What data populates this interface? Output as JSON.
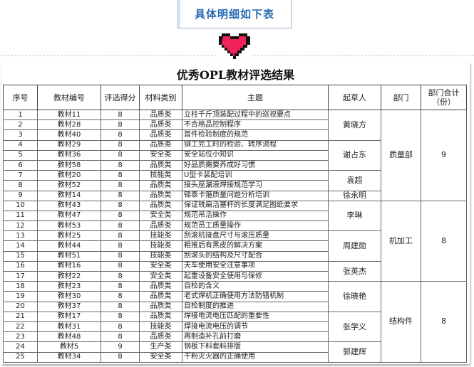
{
  "banner": {
    "label": "具体明细如下表"
  },
  "heart_icon": {
    "color": "#f0245a"
  },
  "sheet": {
    "title": "优秀OPL教材评选结果",
    "headers": [
      "序号",
      "教材编号",
      "评选得分",
      "材料类别",
      "主题",
      "起草人",
      "部门",
      "部门合计（份）"
    ],
    "rows": [
      {
        "no": "1",
        "id": "教材11",
        "score": "8",
        "type": "品质类",
        "topic": "立柱千斤顶装配过程中的巡视要点"
      },
      {
        "no": "2",
        "id": "教材28",
        "score": "8",
        "type": "品质类",
        "topic": "不合格品控制程序"
      },
      {
        "no": "3",
        "id": "教材40",
        "score": "8",
        "type": "品质类",
        "topic": "首件检验制度的规范"
      },
      {
        "no": "4",
        "id": "教材29",
        "score": "8",
        "type": "品质类",
        "topic": "铆工完工时的检验、转序流程"
      },
      {
        "no": "5",
        "id": "教材36",
        "score": "8",
        "type": "安全类",
        "topic": "安全站位小知识"
      },
      {
        "no": "6",
        "id": "教材58",
        "score": "8",
        "type": "品质类",
        "topic": "好品质需要养成好习惯"
      },
      {
        "no": "7",
        "id": "教材20",
        "score": "8",
        "type": "技能类",
        "topic": "U型卡装配培训"
      },
      {
        "no": "8",
        "id": "教材52",
        "score": "8",
        "type": "品质类",
        "topic": "接头座漏液焊接规范学习"
      },
      {
        "no": "9",
        "id": "教材14",
        "score": "8",
        "type": "品质类",
        "topic": "锦泰卡箍质量问题分析培训"
      },
      {
        "no": "10",
        "id": "教材43",
        "score": "8",
        "type": "品质类",
        "topic": "保证铣扁活塞杆的长度满足图纸要求"
      },
      {
        "no": "11",
        "id": "教材47",
        "score": "8",
        "type": "安全类",
        "topic": "规范吊活操作"
      },
      {
        "no": "12",
        "id": "教材53",
        "score": "8",
        "type": "品质类",
        "topic": "规范员工质量操作"
      },
      {
        "no": "13",
        "id": "教材25",
        "score": "8",
        "type": "技能类",
        "topic": "刮滚机接盘尺寸与滚压质量"
      },
      {
        "no": "14",
        "id": "教材44",
        "score": "8",
        "type": "技能类",
        "topic": "粗推后有黑皮的解决方案"
      },
      {
        "no": "15",
        "id": "教材51",
        "score": "8",
        "type": "技能类",
        "topic": "刮滚头的结构及尺寸配合"
      },
      {
        "no": "16",
        "id": "教材16",
        "score": "8",
        "type": "安全类",
        "topic": "天车使用安全注意事项"
      },
      {
        "no": "17",
        "id": "教材22",
        "score": "8",
        "type": "安全类",
        "topic": "起重设备安全使用与保修"
      },
      {
        "no": "18",
        "id": "教材23",
        "score": "8",
        "type": "品质类",
        "topic": "自检的含义"
      },
      {
        "no": "19",
        "id": "教材30",
        "score": "8",
        "type": "品质类",
        "topic": "老式焊机正确使用方法防错机制"
      },
      {
        "no": "20",
        "id": "教材37",
        "score": "8",
        "type": "品质类",
        "topic": "自检制度的推进"
      },
      {
        "no": "21",
        "id": "教材17",
        "score": "8",
        "type": "品质类",
        "topic": "焊接电流电压匹配的重要性"
      },
      {
        "no": "22",
        "id": "教材31",
        "score": "8",
        "type": "技能类",
        "topic": "焊接电流电压的调节"
      },
      {
        "no": "23",
        "id": "教材48",
        "score": "8",
        "type": "品质类",
        "topic": "再制造补孔前打磨"
      },
      {
        "no": "24",
        "id": "教材5",
        "score": "9",
        "type": "生产类",
        "topic": "钢板下料套料排版"
      },
      {
        "no": "25",
        "id": "教材34",
        "score": "8",
        "type": "安全类",
        "topic": "干粉灭火器的正确使用"
      }
    ],
    "drafters": [
      {
        "name": "黄晓方",
        "rows": 3
      },
      {
        "name": "谢占东",
        "rows": 3
      },
      {
        "name": "袁超",
        "rows": 2
      },
      {
        "name": "徐永明",
        "rows": 1
      },
      {
        "name": "李琳",
        "rows": 3
      },
      {
        "name": "周建勋",
        "rows": 3
      },
      {
        "name": "张英杰",
        "rows": 2
      },
      {
        "name": "徐晓艳",
        "rows": 3
      },
      {
        "name": "张学义",
        "rows": 3
      },
      {
        "name": "郭建辉",
        "rows": 2
      }
    ],
    "departments": [
      {
        "name": "质量部",
        "total": "9",
        "rows": 9
      },
      {
        "name": "机加工",
        "total": "8",
        "rows": 8
      },
      {
        "name": "结构件",
        "total": "8",
        "rows": 8
      }
    ]
  }
}
